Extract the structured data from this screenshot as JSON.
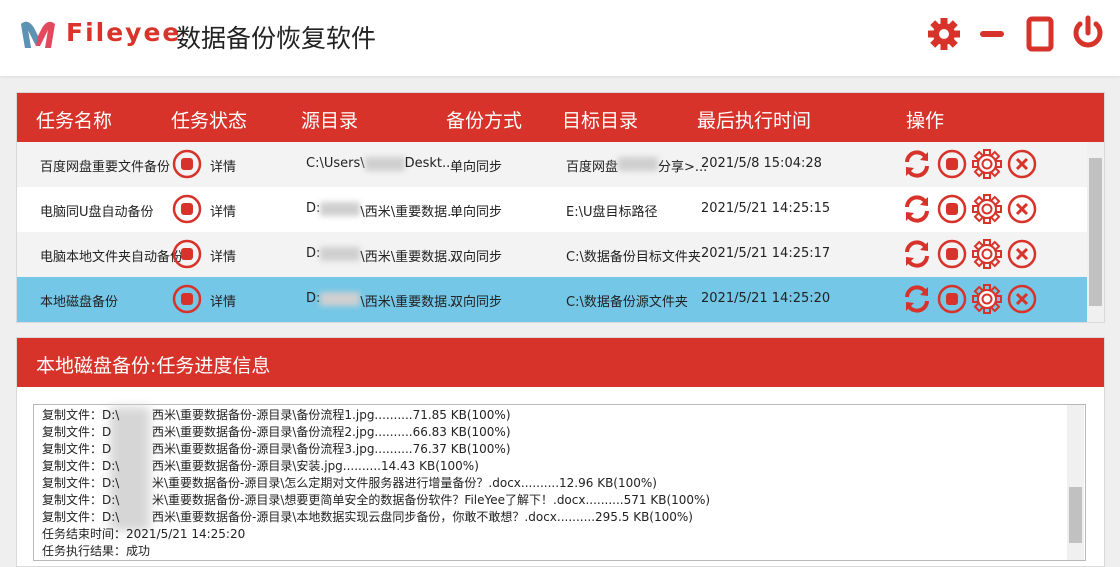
{
  "header": {
    "brand": "Fileyee",
    "app_title": "数据备份恢复软件"
  },
  "task_table": {
    "columns": [
      "任务名称",
      "任务状态",
      "源目录",
      "备份方式",
      "目标目录",
      "最后执行时间",
      "操作"
    ],
    "rows": [
      {
        "name": "百度网盘重要文件备份",
        "detail": "详情",
        "source": [
          "C:\\Users\\",
          "Deskt..."
        ],
        "mode": "单向同步",
        "target": [
          "百度网盘",
          "分享>..."
        ],
        "time": "2021/5/8 15:04:28",
        "selected": false
      },
      {
        "name": "电脑同U盘自动备份",
        "detail": "详情",
        "source": [
          "D:",
          "\\西米\\重要数据..."
        ],
        "mode": "单向同步",
        "target": [
          "E:\\U盘目标路径"
        ],
        "time": "2021/5/21 14:25:15",
        "selected": false
      },
      {
        "name": "电脑本地文件夹自动备份",
        "detail": "详情",
        "source": [
          "D:",
          "\\西米\\重要数据..."
        ],
        "mode": "双向同步",
        "target": [
          "C:\\数据备份目标文件夹"
        ],
        "time": "2021/5/21 14:25:17",
        "selected": false
      },
      {
        "name": "本地磁盘备份",
        "detail": "详情",
        "source": [
          "D:",
          "\\西米\\重要数据..."
        ],
        "mode": "双向同步",
        "target": [
          "C:\\数据备份源文件夹"
        ],
        "time": "2021/5/21 14:25:20",
        "selected": true
      }
    ]
  },
  "log_panel": {
    "title": "本地磁盘备份:任务进度信息",
    "lines": [
      [
        "复制文件：D:\\",
        "西米\\重要数据备份-源目录\\备份流程1.jpg..........71.85 KB(100%)"
      ],
      [
        "复制文件：D",
        "西米\\重要数据备份-源目录\\备份流程2.jpg..........66.83 KB(100%)"
      ],
      [
        "复制文件：D",
        "西米\\重要数据备份-源目录\\备份流程3.jpg..........76.37 KB(100%)"
      ],
      [
        "复制文件：D:\\",
        "西米\\重要数据备份-源目录\\安装.jpg..........14.43 KB(100%)"
      ],
      [
        "复制文件：D:\\",
        "米\\重要数据备份-源目录\\怎么定期对文件服务器进行增量备份？.docx..........12.96 KB(100%)"
      ],
      [
        "复制文件：D:\\",
        "米\\重要数据备份-源目录\\想要更简单安全的数据备份软件？FileYee了解下！.docx..........571 KB(100%)"
      ],
      [
        "复制文件：D:\\",
        "西米\\重要数据备份-源目录\\本地数据实现云盘同步备份，你敢不敢想？.docx..........295.5 KB(100%)"
      ],
      [
        "任务结束时间：2021/5/21 14:25:20"
      ],
      [
        "任务执行结果：成功"
      ]
    ]
  }
}
